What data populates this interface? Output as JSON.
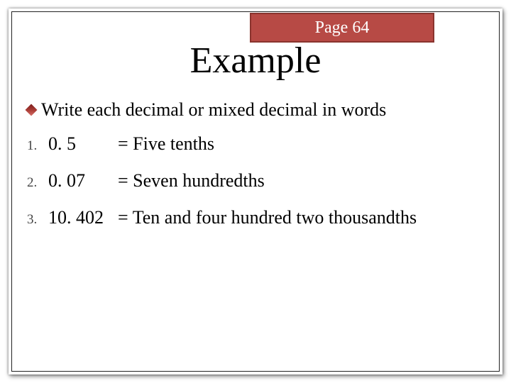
{
  "colors": {
    "tab_bg": "#b74a45",
    "tab_border": "#8a342e",
    "tab_text": "#ffffff",
    "text": "#000000",
    "frame_border": "#222222"
  },
  "pageTab": "Page 64",
  "title": "Example",
  "instruction": "Write each decimal or mixed decimal in words",
  "rows": [
    {
      "num": "1.",
      "value": "0. 5",
      "words": "= Five tenths"
    },
    {
      "num": "2.",
      "value": "0. 07",
      "words": "= Seven hundredths"
    },
    {
      "num": "3.",
      "value": "10. 402",
      "words": "= Ten and four hundred two thousandths"
    }
  ]
}
